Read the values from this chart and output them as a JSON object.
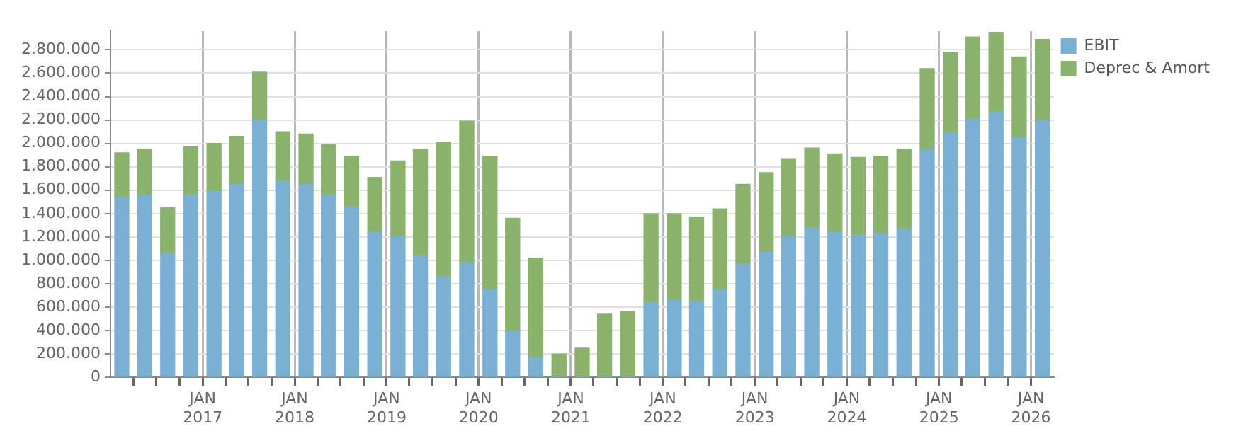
{
  "chart_data": {
    "type": "bar",
    "stacked": true,
    "x": [
      "2016-02-15",
      "2016-05-15",
      "2016-08-15",
      "2016-11-15",
      "2017-02-15",
      "2017-05-15",
      "2017-08-15",
      "2017-11-15",
      "2018-02-15",
      "2018-05-15",
      "2018-08-15",
      "2018-11-15",
      "2019-02-15",
      "2019-05-15",
      "2019-08-15",
      "2019-11-15",
      "2020-02-15",
      "2020-05-15",
      "2020-08-15",
      "2020-11-15",
      "2021-02-15",
      "2021-05-15",
      "2021-08-15",
      "2021-11-15",
      "2022-02-15",
      "2022-05-15",
      "2022-08-15",
      "2022-11-15",
      "2023-02-15",
      "2023-05-15",
      "2023-08-15",
      "2023-11-15",
      "2024-02-15",
      "2024-05-15",
      "2024-08-15",
      "2024-11-15",
      "2025-02-15",
      "2025-05-15",
      "2025-08-15",
      "2025-11-15",
      "2026-02-15"
    ],
    "series": [
      {
        "name": "EBIT",
        "color": "#7ab0d4",
        "values": [
          1540000,
          1560000,
          1060000,
          1560000,
          1590000,
          1650000,
          2200000,
          1680000,
          1650000,
          1560000,
          1460000,
          1240000,
          1200000,
          1040000,
          860000,
          980000,
          750000,
          390000,
          170000,
          0,
          0,
          0,
          0,
          640000,
          660000,
          650000,
          750000,
          970000,
          1070000,
          1200000,
          1280000,
          1240000,
          1220000,
          1230000,
          1270000,
          1950000,
          2090000,
          2210000,
          2270000,
          2050000,
          2200000
        ]
      },
      {
        "name": "Deprec & Amort",
        "color": "#8ab26a",
        "values": [
          380000,
          390000,
          390000,
          410000,
          410000,
          410000,
          410000,
          420000,
          430000,
          430000,
          430000,
          470000,
          650000,
          910000,
          1150000,
          1210000,
          1140000,
          970000,
          850000,
          200000,
          250000,
          540000,
          560000,
          760000,
          740000,
          720000,
          690000,
          680000,
          680000,
          670000,
          680000,
          670000,
          660000,
          660000,
          680000,
          690000,
          690000,
          700000,
          680000,
          690000,
          690000
        ]
      }
    ],
    "xlim": [
      "2016-01",
      "2026-04"
    ],
    "xticks": [
      {
        "value": "2016-04",
        "label": null
      },
      {
        "value": "2016-07",
        "label": null
      },
      {
        "value": "2016-10",
        "label": null
      },
      {
        "value": "2017-01",
        "label": "JAN 2017"
      },
      {
        "value": "2017-04",
        "label": null
      },
      {
        "value": "2017-07",
        "label": null
      },
      {
        "value": "2017-10",
        "label": null
      },
      {
        "value": "2018-01",
        "label": "JAN 2018"
      },
      {
        "value": "2018-04",
        "label": null
      },
      {
        "value": "2018-07",
        "label": null
      },
      {
        "value": "2018-10",
        "label": null
      },
      {
        "value": "2019-01",
        "label": "JAN 2019"
      },
      {
        "value": "2019-04",
        "label": null
      },
      {
        "value": "2019-07",
        "label": null
      },
      {
        "value": "2019-10",
        "label": null
      },
      {
        "value": "2020-01",
        "label": "JAN 2020"
      },
      {
        "value": "2020-04",
        "label": null
      },
      {
        "value": "2020-07",
        "label": null
      },
      {
        "value": "2020-10",
        "label": null
      },
      {
        "value": "2021-01",
        "label": "JAN 2021"
      },
      {
        "value": "2021-04",
        "label": null
      },
      {
        "value": "2021-07",
        "label": null
      },
      {
        "value": "2021-10",
        "label": null
      },
      {
        "value": "2022-01",
        "label": "JAN 2022"
      },
      {
        "value": "2022-04",
        "label": null
      },
      {
        "value": "2022-07",
        "label": null
      },
      {
        "value": "2022-10",
        "label": null
      },
      {
        "value": "2023-01",
        "label": "JAN 2023"
      },
      {
        "value": "2023-04",
        "label": null
      },
      {
        "value": "2023-07",
        "label": null
      },
      {
        "value": "2023-10",
        "label": null
      },
      {
        "value": "2024-01",
        "label": "JAN 2024"
      },
      {
        "value": "2024-04",
        "label": null
      },
      {
        "value": "2024-07",
        "label": null
      },
      {
        "value": "2024-10",
        "label": null
      },
      {
        "value": "2025-01",
        "label": "JAN 2025"
      },
      {
        "value": "2025-04",
        "label": null
      },
      {
        "value": "2025-07",
        "label": null
      },
      {
        "value": "2025-10",
        "label": null
      },
      {
        "value": "2026-01",
        "label": "JAN 2026"
      }
    ],
    "ylim": [
      0,
      2960000
    ],
    "yticks": [
      0,
      {
        "value": 200000,
        "label": "200.000"
      },
      {
        "value": 400000,
        "label": "400.000"
      },
      {
        "value": 600000,
        "label": "600.000"
      },
      {
        "value": 800000,
        "label": "800.000"
      },
      {
        "value": 1000000,
        "label": "1.000.000"
      },
      {
        "value": 1200000,
        "label": "1.200.000"
      },
      {
        "value": 1400000,
        "label": "1.400.000"
      },
      {
        "value": 1600000,
        "label": "1.600.000"
      },
      {
        "value": 1800000,
        "label": "1.800.000"
      },
      {
        "value": 2000000,
        "label": "2.000.000"
      },
      {
        "value": 2200000,
        "label": "2.200.000"
      },
      {
        "value": 2400000,
        "label": "2.400.000"
      },
      {
        "value": 2600000,
        "label": "2.600.000"
      },
      {
        "value": 2800000,
        "label": "2.800.000"
      }
    ],
    "grid": true,
    "legend": "top right"
  }
}
